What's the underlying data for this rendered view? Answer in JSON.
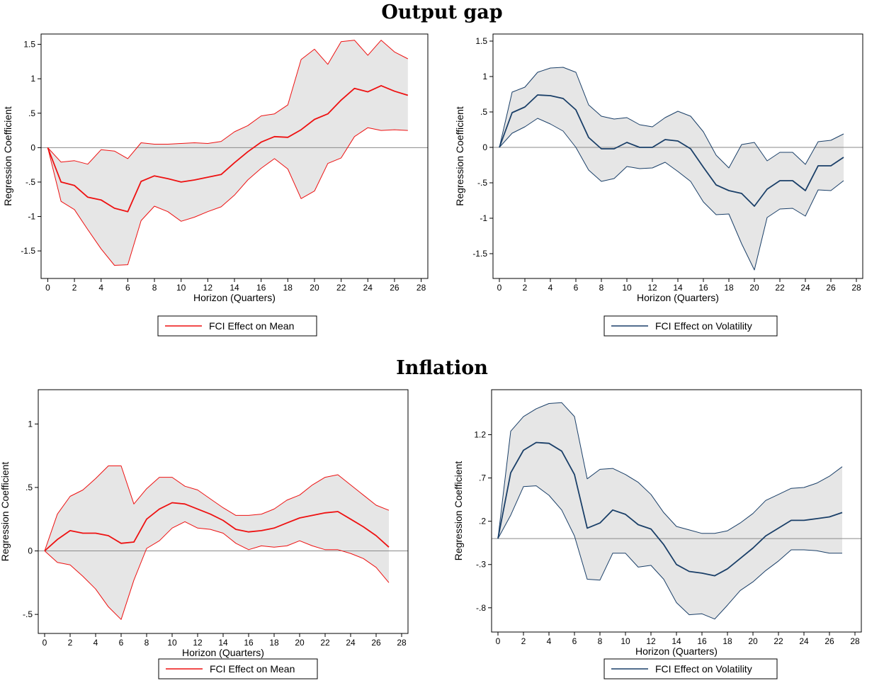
{
  "sections": [
    {
      "title": "Output gap"
    },
    {
      "title": "Inflation"
    }
  ],
  "colors": {
    "mean": "#ee1111",
    "volatility": "#1a3f68",
    "band_fill": "#e6e6e6",
    "zero_line": "#8a8a8a"
  },
  "chart_data": [
    {
      "type": "line",
      "section": "Output gap",
      "xlabel": "Horizon (Quarters)",
      "ylabel": "Regression Coefficient",
      "xlim": [
        -0.5,
        28.5
      ],
      "ylim": [
        -1.9,
        1.65
      ],
      "xticks": [
        "0",
        "2",
        "4",
        "6",
        "8",
        "10",
        "12",
        "14",
        "16",
        "18",
        "20",
        "22",
        "24",
        "26",
        "28"
      ],
      "yticks": [
        "1.5",
        "1",
        ".5",
        "0",
        "-.5",
        "-1",
        "-1.5"
      ],
      "ytick_values": [
        1.5,
        1,
        0.5,
        0,
        -0.5,
        -1,
        -1.5
      ],
      "legend": "FCI Effect on Mean",
      "legend_position": "bottom",
      "color": "#ee1111",
      "x": [
        0,
        1,
        2,
        3,
        4,
        5,
        6,
        7,
        8,
        9,
        10,
        11,
        12,
        13,
        14,
        15,
        16,
        17,
        18,
        19,
        20,
        21,
        22,
        23,
        24,
        25,
        26,
        27
      ],
      "series": [
        {
          "name": "FCI Effect on Mean",
          "values": [
            0,
            -0.5,
            -0.55,
            -0.72,
            -0.76,
            -0.88,
            -0.93,
            -0.49,
            -0.41,
            -0.45,
            -0.5,
            -0.47,
            -0.43,
            -0.39,
            -0.22,
            -0.06,
            0.08,
            0.16,
            0.15,
            0.26,
            0.41,
            0.49,
            0.69,
            0.86,
            0.81,
            0.9,
            0.82,
            0.76
          ]
        },
        {
          "role": "upper",
          "values": [
            0,
            -0.21,
            -0.19,
            -0.24,
            -0.03,
            -0.05,
            -0.16,
            0.07,
            0.05,
            0.05,
            0.06,
            0.07,
            0.06,
            0.09,
            0.23,
            0.32,
            0.46,
            0.49,
            0.62,
            1.28,
            1.43,
            1.21,
            1.54,
            1.56,
            1.34,
            1.56,
            1.39,
            1.29
          ]
        },
        {
          "role": "lower",
          "values": [
            0,
            -0.78,
            -0.9,
            -1.19,
            -1.47,
            -1.71,
            -1.7,
            -1.06,
            -0.85,
            -0.93,
            -1.07,
            -1.01,
            -0.93,
            -0.86,
            -0.69,
            -0.47,
            -0.3,
            -0.16,
            -0.31,
            -0.74,
            -0.63,
            -0.23,
            -0.15,
            0.16,
            0.29,
            0.25,
            0.26,
            0.25
          ]
        }
      ]
    },
    {
      "type": "line",
      "section": "Output gap",
      "xlabel": "Horizon (Quarters)",
      "ylabel": "Regression Coefficient",
      "xlim": [
        -0.5,
        28.5
      ],
      "ylim": [
        -1.85,
        1.6
      ],
      "xticks": [
        "0",
        "2",
        "4",
        "6",
        "8",
        "10",
        "12",
        "14",
        "16",
        "18",
        "20",
        "22",
        "24",
        "26",
        "28"
      ],
      "yticks": [
        "1.5",
        "1",
        ".5",
        "0",
        "-.5",
        "-1",
        "-1.5"
      ],
      "ytick_values": [
        1.5,
        1,
        0.5,
        0,
        -0.5,
        -1,
        -1.5
      ],
      "legend": "FCI Effect on Volatility",
      "legend_position": "bottom",
      "color": "#1a3f68",
      "x": [
        0,
        1,
        2,
        3,
        4,
        5,
        6,
        7,
        8,
        9,
        10,
        11,
        12,
        13,
        14,
        15,
        16,
        17,
        18,
        19,
        20,
        21,
        22,
        23,
        24,
        25,
        26,
        27
      ],
      "series": [
        {
          "name": "FCI Effect on Volatility",
          "values": [
            0,
            0.49,
            0.57,
            0.74,
            0.73,
            0.69,
            0.53,
            0.14,
            -0.02,
            -0.02,
            0.07,
            0,
            0,
            0.11,
            0.09,
            -0.02,
            -0.28,
            -0.53,
            -0.61,
            -0.65,
            -0.83,
            -0.59,
            -0.47,
            -0.47,
            -0.61,
            -0.26,
            -0.26,
            -0.14
          ]
        },
        {
          "role": "upper",
          "values": [
            0,
            0.78,
            0.85,
            1.06,
            1.12,
            1.13,
            1.06,
            0.6,
            0.44,
            0.4,
            0.42,
            0.32,
            0.29,
            0.42,
            0.51,
            0.44,
            0.22,
            -0.11,
            -0.29,
            0.04,
            0.07,
            -0.19,
            -0.07,
            -0.07,
            -0.24,
            0.08,
            0.1,
            0.19
          ]
        },
        {
          "role": "lower",
          "values": [
            0,
            0.2,
            0.29,
            0.41,
            0.33,
            0.23,
            0,
            -0.32,
            -0.48,
            -0.44,
            -0.27,
            -0.3,
            -0.29,
            -0.21,
            -0.34,
            -0.48,
            -0.77,
            -0.95,
            -0.94,
            -1.36,
            -1.73,
            -0.99,
            -0.87,
            -0.86,
            -0.97,
            -0.6,
            -0.61,
            -0.47
          ]
        }
      ]
    },
    {
      "type": "line",
      "section": "Inflation",
      "xlabel": "Horizon (Quarters)",
      "ylabel": "Regression Coefficient",
      "xlim": [
        -0.5,
        28.5
      ],
      "ylim": [
        -0.65,
        1.27
      ],
      "xticks": [
        "0",
        "2",
        "4",
        "6",
        "8",
        "10",
        "12",
        "14",
        "16",
        "18",
        "20",
        "22",
        "24",
        "26",
        "28"
      ],
      "yticks": [
        "1",
        ".5",
        "0",
        "-.5"
      ],
      "ytick_values": [
        1,
        0.5,
        0,
        -0.5
      ],
      "legend": "FCI Effect on Mean",
      "legend_position": "bottom",
      "color": "#ee1111",
      "x": [
        0,
        1,
        2,
        3,
        4,
        5,
        6,
        7,
        8,
        9,
        10,
        11,
        12,
        13,
        14,
        15,
        16,
        17,
        18,
        19,
        20,
        21,
        22,
        23,
        24,
        25,
        26,
        27
      ],
      "series": [
        {
          "name": "FCI Effect on Mean",
          "values": [
            0,
            0.09,
            0.16,
            0.14,
            0.14,
            0.12,
            0.06,
            0.07,
            0.25,
            0.33,
            0.38,
            0.37,
            0.33,
            0.29,
            0.24,
            0.17,
            0.15,
            0.16,
            0.18,
            0.22,
            0.26,
            0.28,
            0.3,
            0.31,
            0.25,
            0.19,
            0.12,
            0.03
          ]
        },
        {
          "role": "upper",
          "values": [
            0,
            0.29,
            0.43,
            0.48,
            0.57,
            0.67,
            0.67,
            0.37,
            0.49,
            0.58,
            0.58,
            0.51,
            0.48,
            0.41,
            0.34,
            0.28,
            0.28,
            0.29,
            0.33,
            0.4,
            0.44,
            0.52,
            0.58,
            0.6,
            0.52,
            0.44,
            0.36,
            0.32
          ]
        },
        {
          "role": "lower",
          "values": [
            0,
            -0.09,
            -0.11,
            -0.2,
            -0.3,
            -0.44,
            -0.54,
            -0.23,
            0.02,
            0.08,
            0.18,
            0.23,
            0.18,
            0.17,
            0.14,
            0.06,
            0.01,
            0.04,
            0.03,
            0.04,
            0.08,
            0.04,
            0.01,
            0.01,
            -0.02,
            -0.06,
            -0.13,
            -0.25
          ]
        }
      ]
    },
    {
      "type": "line",
      "section": "Inflation",
      "xlabel": "Horizon (Quarters)",
      "ylabel": "Regression Coefficient",
      "xlim": [
        -0.5,
        28.5
      ],
      "ylim": [
        -1.08,
        1.72
      ],
      "xticks": [
        "0",
        "2",
        "4",
        "6",
        "8",
        "10",
        "12",
        "14",
        "16",
        "18",
        "20",
        "22",
        "24",
        "26",
        "28"
      ],
      "yticks": [
        "1.2",
        ".7",
        ".2",
        "-.3",
        "-.8"
      ],
      "ytick_values": [
        1.2,
        0.7,
        0.2,
        -0.3,
        -0.8
      ],
      "legend": "FCI Effect on Volatility",
      "legend_position": "bottom",
      "color": "#1a3f68",
      "x": [
        0,
        1,
        2,
        3,
        4,
        5,
        6,
        7,
        8,
        9,
        10,
        11,
        12,
        13,
        14,
        15,
        16,
        17,
        18,
        19,
        20,
        21,
        22,
        23,
        24,
        25,
        26,
        27
      ],
      "series": [
        {
          "name": "FCI Effect on Volatility",
          "values": [
            0,
            0.76,
            1.02,
            1.11,
            1.1,
            1.01,
            0.74,
            0.12,
            0.18,
            0.33,
            0.28,
            0.16,
            0.11,
            -0.07,
            -0.3,
            -0.38,
            -0.4,
            -0.43,
            -0.35,
            -0.23,
            -0.11,
            0.03,
            0.12,
            0.21,
            0.21,
            0.23,
            0.25,
            0.3
          ]
        },
        {
          "role": "upper",
          "values": [
            0,
            1.24,
            1.41,
            1.5,
            1.56,
            1.57,
            1.41,
            0.69,
            0.8,
            0.81,
            0.74,
            0.65,
            0.51,
            0.3,
            0.14,
            0.1,
            0.06,
            0.06,
            0.09,
            0.18,
            0.29,
            0.44,
            0.51,
            0.58,
            0.59,
            0.64,
            0.72,
            0.83
          ]
        },
        {
          "role": "lower",
          "values": [
            0,
            0.27,
            0.6,
            0.61,
            0.5,
            0.33,
            0.03,
            -0.47,
            -0.48,
            -0.17,
            -0.17,
            -0.33,
            -0.31,
            -0.47,
            -0.74,
            -0.88,
            -0.87,
            -0.93,
            -0.77,
            -0.6,
            -0.5,
            -0.37,
            -0.26,
            -0.13,
            -0.13,
            -0.14,
            -0.17,
            -0.17
          ]
        }
      ]
    }
  ]
}
